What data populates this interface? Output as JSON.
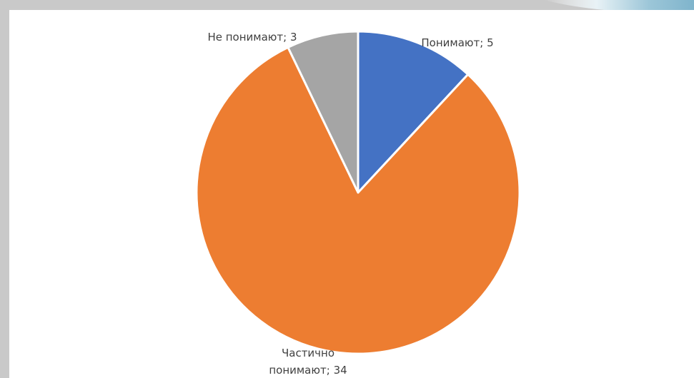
{
  "chart_data": {
    "type": "pie",
    "title": "",
    "categories": [
      "Понимают",
      "Частично понимают",
      "Не понимают"
    ],
    "values": [
      5,
      34,
      3
    ],
    "colors": [
      "#4472c4",
      "#ed7d31",
      "#a5a5a5"
    ],
    "data_labels": [
      [
        "Понимают; 5"
      ],
      [
        "Частично",
        "понимают; 34"
      ],
      [
        "Не понимают; 3"
      ]
    ],
    "start_angle_deg": 0,
    "direction": "clockwise",
    "legend": "none"
  },
  "colors": {
    "frame_background": "#c9c9c9",
    "plot_background": "#ffffff",
    "slice_border": "#ffffff",
    "label_text": "#404040"
  }
}
